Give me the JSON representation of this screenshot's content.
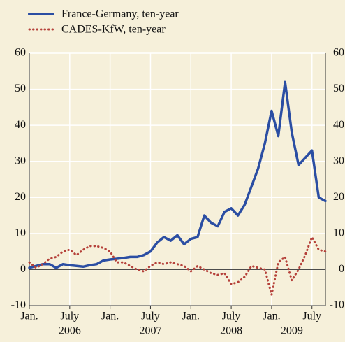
{
  "chart_data": {
    "type": "line",
    "x": [
      "2006-01",
      "2006-02",
      "2006-03",
      "2006-04",
      "2006-05",
      "2006-06",
      "2006-07",
      "2006-08",
      "2006-09",
      "2006-10",
      "2006-11",
      "2006-12",
      "2007-01",
      "2007-02",
      "2007-03",
      "2007-04",
      "2007-05",
      "2007-06",
      "2007-07",
      "2007-08",
      "2007-09",
      "2007-10",
      "2007-11",
      "2007-12",
      "2008-01",
      "2008-02",
      "2008-03",
      "2008-04",
      "2008-05",
      "2008-06",
      "2008-07",
      "2008-08",
      "2008-09",
      "2008-10",
      "2008-11",
      "2008-12",
      "2009-01",
      "2009-02",
      "2009-03",
      "2009-04",
      "2009-05",
      "2009-06",
      "2009-07",
      "2009-08",
      "2009-09"
    ],
    "series": [
      {
        "name": "France-Germany, ten-year",
        "color": "#2b4ea3",
        "style": "solid",
        "values": [
          0.5,
          1,
          1.5,
          1.5,
          0.5,
          1.5,
          1.2,
          1,
          0.8,
          1.2,
          1.5,
          2.5,
          2.8,
          3,
          3.2,
          3.5,
          3.5,
          4,
          5,
          7.5,
          9,
          8,
          9.5,
          7,
          8.5,
          9,
          15,
          13,
          12,
          16,
          17,
          15,
          18,
          23,
          28,
          35,
          44,
          37,
          52,
          38,
          29,
          31,
          33,
          20,
          19
        ]
      },
      {
        "name": "CADES-KfW, ten-year",
        "color": "#b5413a",
        "style": "dotted",
        "values": [
          2,
          0.5,
          1.5,
          3,
          3.5,
          5,
          5.5,
          4,
          5.5,
          6.5,
          6.5,
          6,
          5,
          2,
          2,
          1,
          0,
          -0.5,
          1,
          2,
          1.5,
          2,
          1.5,
          1,
          -0.5,
          1,
          0,
          -1,
          -1.5,
          -1,
          -4,
          -3.5,
          -2,
          1,
          0.5,
          0,
          -7,
          2,
          3.5,
          -3,
          0,
          4,
          9,
          5.5,
          5
        ]
      }
    ],
    "xlim": [
      "2006-01",
      "2009-09"
    ],
    "xticks": [
      {
        "value": "2006-01",
        "label": "Jan."
      },
      {
        "value": "2006-07",
        "label": "July"
      },
      {
        "value": "2007-01",
        "label": "Jan."
      },
      {
        "value": "2007-07",
        "label": "July"
      },
      {
        "value": "2008-01",
        "label": "Jan."
      },
      {
        "value": "2008-07",
        "label": "July"
      },
      {
        "value": "2009-01",
        "label": "Jan."
      },
      {
        "value": "2009-07",
        "label": "July"
      }
    ],
    "year_labels": [
      {
        "value": "2006-07",
        "label": "2006"
      },
      {
        "value": "2007-07",
        "label": "2007"
      },
      {
        "value": "2008-07",
        "label": "2008"
      },
      {
        "value": "2009-04",
        "label": "2009"
      }
    ],
    "ylim": [
      -10,
      60
    ],
    "yticks": [
      -10,
      0,
      10,
      20,
      30,
      40,
      50,
      60
    ],
    "grid": true,
    "right_axis_labels": true,
    "legend": "top-left"
  }
}
